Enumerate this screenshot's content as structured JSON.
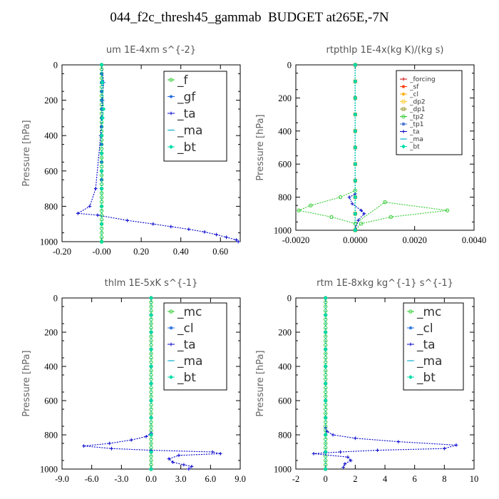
{
  "title": "044_f2c_thresh45_gammab  BUDGET at265E,-7N",
  "chart_data": [
    {
      "type": "line",
      "title": "um   1E-4xm s^{-2}",
      "ylabel": "Pressure [hPa]",
      "xlim": [
        -0.2,
        0.7
      ],
      "ylim": [
        1000,
        0
      ],
      "xticks": [
        "-0.20",
        "-0.00",
        "0.20",
        "0.40",
        "0.60"
      ],
      "xtick_values": [
        -0.2,
        0,
        0.2,
        0.4,
        0.6
      ],
      "yticks": [
        "0",
        "200",
        "400",
        "600",
        "800",
        "1000"
      ],
      "legend_position": "top-right",
      "series": [
        {
          "name": "_f",
          "color": "#33cc33",
          "marker": "circle",
          "x": [
            0,
            0,
            0,
            0,
            0,
            0,
            0,
            0,
            0,
            0,
            0,
            0,
            0,
            0,
            0,
            0,
            0,
            0,
            0,
            0,
            0,
            0,
            0,
            0,
            0,
            0,
            0,
            0,
            0,
            0,
            0,
            0,
            0,
            0,
            0,
            0,
            0,
            0,
            0,
            0,
            0,
            0,
            0
          ],
          "y": [
            0,
            25,
            50,
            75,
            100,
            125,
            150,
            175,
            200,
            225,
            250,
            275,
            300,
            325,
            350,
            375,
            400,
            425,
            450,
            475,
            500,
            525,
            550,
            575,
            600,
            625,
            650,
            675,
            700,
            725,
            750,
            775,
            800,
            825,
            850,
            875,
            900,
            925,
            950,
            975,
            1000,
            1000,
            1000
          ]
        },
        {
          "name": "_gf",
          "color": "#1a66dd",
          "marker": "asterisk",
          "x": [
            0,
            0,
            0,
            0,
            0,
            0,
            0,
            0,
            0,
            0,
            0,
            0,
            0,
            0,
            0
          ],
          "y": [
            0,
            50,
            100,
            150,
            200,
            250,
            300,
            350,
            400,
            450,
            500,
            550,
            600,
            650,
            700
          ]
        },
        {
          "name": "_ta",
          "color": "#0000cc",
          "marker": "plus",
          "x": [
            0,
            0.01,
            0.005,
            0,
            -0.005,
            -0.03,
            -0.06,
            -0.12,
            -0.02,
            0.13,
            0.26,
            0.35,
            0.44,
            0.52,
            0.58,
            0.63,
            0.68,
            0.69
          ],
          "y": [
            0,
            100,
            200,
            300,
            400,
            700,
            800,
            840,
            850,
            880,
            900,
            915,
            930,
            945,
            960,
            975,
            990,
            1000
          ]
        },
        {
          "name": "_ma",
          "color": "#00aacc",
          "marker": "dash",
          "x": [
            0,
            0,
            0,
            0,
            0,
            0,
            0,
            0,
            0,
            0,
            0
          ],
          "y": [
            0,
            100,
            200,
            300,
            400,
            500,
            600,
            700,
            800,
            900,
            1000
          ]
        },
        {
          "name": "_bt",
          "color": "#00ddaa",
          "marker": "diamond",
          "x": [
            0,
            0.005,
            0.01,
            0.005,
            0,
            0,
            0,
            0,
            0,
            0,
            0
          ],
          "y": [
            0,
            100,
            250,
            300,
            400,
            500,
            600,
            700,
            800,
            900,
            1000
          ]
        }
      ]
    },
    {
      "type": "line",
      "title": "rtpthlp   1E-4x(kg K)/(kg s)",
      "ylabel": "Pressure [hPa]",
      "xlim": [
        -0.002,
        0.004
      ],
      "ylim": [
        1000,
        0
      ],
      "xticks": [
        "-0.0020",
        "0.0000",
        "0.0020",
        "0.0040"
      ],
      "xtick_values": [
        -0.002,
        0,
        0.002,
        0.004
      ],
      "yticks": [
        "0",
        "200",
        "400",
        "600",
        "800",
        "1000"
      ],
      "legend_position": "top-right",
      "series": [
        {
          "name": "_forcing",
          "color": "#cc0000",
          "marker": "plus",
          "x": [
            0,
            0,
            0,
            0,
            0,
            0,
            0,
            0,
            0,
            0,
            0
          ],
          "y": [
            0,
            100,
            200,
            300,
            400,
            500,
            600,
            700,
            800,
            900,
            1000
          ]
        },
        {
          "name": "_sf",
          "color": "#ff3300",
          "marker": "asterisk",
          "x": [
            0,
            0,
            0,
            0,
            0,
            0,
            0,
            0,
            0,
            0,
            0
          ],
          "y": [
            0,
            100,
            200,
            300,
            400,
            500,
            600,
            700,
            800,
            900,
            1000
          ]
        },
        {
          "name": "_cl",
          "color": "#ffaa00",
          "marker": "asterisk",
          "x": [
            0,
            0,
            0,
            0,
            0,
            0,
            0,
            0,
            0,
            0,
            0
          ],
          "y": [
            0,
            100,
            200,
            300,
            400,
            500,
            600,
            700,
            800,
            900,
            1000
          ]
        },
        {
          "name": "_dp2",
          "color": "#ffcc33",
          "marker": "square",
          "x": [
            0,
            0,
            0,
            0,
            0,
            0,
            0,
            0,
            0,
            0,
            0
          ],
          "y": [
            0,
            100,
            200,
            300,
            400,
            500,
            600,
            700,
            800,
            900,
            1000
          ]
        },
        {
          "name": "_dp1",
          "color": "#999933",
          "marker": "square",
          "x": [
            0,
            0,
            0,
            0,
            0,
            0,
            0,
            0,
            0,
            0,
            0
          ],
          "y": [
            0,
            100,
            200,
            300,
            400,
            500,
            600,
            700,
            800,
            900,
            1000
          ]
        },
        {
          "name": "_tp2",
          "color": "#33cc33",
          "marker": "circle",
          "x": [
            0,
            0,
            -0.0005,
            -0.0015,
            -0.0019,
            -0.0008,
            0,
            0.001,
            0.0031,
            0.0012,
            0.0002,
            0
          ],
          "y": [
            0,
            760,
            800,
            850,
            880,
            920,
            960,
            830,
            880,
            920,
            960,
            1000
          ]
        },
        {
          "name": "_tp1",
          "color": "#3366cc",
          "marker": "asterisk",
          "x": [
            0,
            0,
            0,
            0,
            0,
            0,
            0,
            0,
            0,
            0,
            0
          ],
          "y": [
            0,
            100,
            200,
            300,
            400,
            500,
            600,
            700,
            800,
            900,
            1000
          ]
        },
        {
          "name": "_ta",
          "color": "#0000cc",
          "marker": "plus",
          "x": [
            0,
            0,
            -0.0002,
            -0.0001,
            0.0002,
            0.0003,
            0.0001,
            0
          ],
          "y": [
            0,
            780,
            800,
            840,
            880,
            900,
            940,
            1000
          ]
        },
        {
          "name": "_ma",
          "color": "#00aacc",
          "marker": "dash",
          "x": [
            0,
            0,
            0,
            0,
            0,
            0,
            0,
            0,
            0,
            0,
            0
          ],
          "y": [
            0,
            100,
            200,
            300,
            400,
            500,
            600,
            700,
            800,
            900,
            1000
          ]
        },
        {
          "name": "_bt",
          "color": "#00ddaa",
          "marker": "diamond",
          "x": [
            0,
            0,
            0,
            0,
            0,
            0,
            0,
            0,
            0,
            0,
            0
          ],
          "y": [
            0,
            100,
            200,
            300,
            400,
            500,
            600,
            700,
            800,
            900,
            1000
          ]
        }
      ]
    },
    {
      "type": "line",
      "title": "thlm   1E-5xK s^{-1}",
      "ylabel": "Pressure [hPa]",
      "xlim": [
        -9,
        9
      ],
      "ylim": [
        1000,
        0
      ],
      "xticks": [
        "-9.0",
        "-6.0",
        "-3.0",
        "0.0",
        "3.0",
        "6.0",
        "9.0"
      ],
      "xtick_values": [
        -9,
        -6,
        -3,
        0,
        3,
        6,
        9
      ],
      "yticks": [
        "0",
        "200",
        "400",
        "600",
        "800",
        "1000"
      ],
      "legend_position": "top-right",
      "series": [
        {
          "name": "_mc",
          "color": "#33cc33",
          "marker": "circle",
          "x": [
            0,
            0,
            0,
            0,
            0,
            0,
            0,
            0,
            0,
            0,
            0,
            0,
            0,
            0,
            0,
            0,
            0,
            0,
            0,
            0,
            0,
            0,
            0,
            0,
            0,
            0,
            0,
            0,
            0,
            0,
            0,
            0,
            0,
            0,
            0,
            0,
            0,
            0,
            0,
            0,
            0
          ],
          "y": [
            0,
            25,
            50,
            75,
            100,
            125,
            150,
            175,
            200,
            225,
            250,
            275,
            300,
            325,
            350,
            375,
            400,
            425,
            450,
            475,
            500,
            525,
            550,
            575,
            600,
            625,
            650,
            675,
            700,
            725,
            750,
            775,
            800,
            825,
            850,
            875,
            900,
            925,
            950,
            975,
            1000
          ]
        },
        {
          "name": "_cl",
          "color": "#1a66dd",
          "marker": "asterisk",
          "x": [
            0,
            0,
            0,
            0,
            0,
            0,
            0,
            0,
            0,
            0,
            0
          ],
          "y": [
            0,
            100,
            200,
            300,
            400,
            500,
            600,
            700,
            800,
            900,
            1000
          ]
        },
        {
          "name": "_ta",
          "color": "#0000cc",
          "marker": "plus",
          "x": [
            0,
            0,
            -0.5,
            -2.0,
            -4.2,
            -6.8,
            -4.0,
            0,
            6.2,
            7.0,
            2.8,
            1.8,
            2.2,
            3.3,
            4.1,
            3.8
          ],
          "y": [
            0,
            790,
            810,
            830,
            850,
            865,
            880,
            890,
            900,
            910,
            920,
            940,
            960,
            975,
            985,
            1000
          ]
        },
        {
          "name": "_ma",
          "color": "#00aacc",
          "marker": "dash",
          "x": [
            0,
            0,
            0,
            0,
            0,
            0,
            0,
            0,
            0,
            0,
            0
          ],
          "y": [
            0,
            100,
            200,
            300,
            400,
            500,
            600,
            700,
            800,
            900,
            1000
          ]
        },
        {
          "name": "_bt",
          "color": "#00ddaa",
          "marker": "diamond",
          "x": [
            0,
            0,
            0,
            0,
            0,
            0,
            0,
            0,
            0,
            0,
            0
          ],
          "y": [
            0,
            100,
            200,
            300,
            400,
            500,
            600,
            700,
            800,
            900,
            1000
          ]
        }
      ]
    },
    {
      "type": "line",
      "title": "rtm   1E-8xkg kg^{-1} s^{-1}",
      "ylabel": "Pressure [hPa]",
      "xlim": [
        -2,
        10
      ],
      "ylim": [
        1000,
        0
      ],
      "xticks": [
        "-2",
        "0",
        "2",
        "4",
        "6",
        "8",
        "10"
      ],
      "xtick_values": [
        -2,
        0,
        2,
        4,
        6,
        8,
        10
      ],
      "yticks": [
        "0",
        "200",
        "400",
        "600",
        "800",
        "1000"
      ],
      "legend_position": "top-right",
      "series": [
        {
          "name": "_mc",
          "color": "#33cc33",
          "marker": "circle",
          "x": [
            0,
            0,
            0,
            0,
            0,
            0,
            0,
            0,
            0,
            0,
            0,
            0,
            0,
            0,
            0,
            0,
            0,
            0,
            0,
            0,
            0,
            0,
            0,
            0,
            0,
            0,
            0,
            0,
            0,
            0,
            0,
            0,
            0,
            0,
            0,
            0,
            0,
            0,
            0,
            0,
            0
          ],
          "y": [
            0,
            25,
            50,
            75,
            100,
            125,
            150,
            175,
            200,
            225,
            250,
            275,
            300,
            325,
            350,
            375,
            400,
            425,
            450,
            475,
            500,
            525,
            550,
            575,
            600,
            625,
            650,
            675,
            700,
            725,
            750,
            775,
            800,
            825,
            850,
            875,
            900,
            925,
            950,
            975,
            1000
          ]
        },
        {
          "name": "_cl",
          "color": "#1a66dd",
          "marker": "asterisk",
          "x": [
            0,
            0,
            0,
            0,
            0,
            0,
            0,
            0,
            0,
            0,
            0
          ],
          "y": [
            0,
            100,
            200,
            300,
            400,
            500,
            600,
            700,
            800,
            900,
            1000
          ]
        },
        {
          "name": "_ta",
          "color": "#0000cc",
          "marker": "plus",
          "x": [
            0,
            0,
            0.1,
            0.5,
            2.0,
            4.9,
            8.8,
            8.0,
            3.5,
            1.0,
            0,
            -0.8,
            1.5,
            1.7,
            1.3,
            1.2
          ],
          "y": [
            0,
            760,
            780,
            800,
            820,
            840,
            860,
            880,
            890,
            900,
            905,
            910,
            930,
            950,
            970,
            990
          ]
        },
        {
          "name": "_ma",
          "color": "#00aacc",
          "marker": "dash",
          "x": [
            0,
            0,
            0,
            0,
            0,
            0,
            0,
            0,
            0,
            0,
            0
          ],
          "y": [
            0,
            100,
            200,
            300,
            400,
            500,
            600,
            700,
            800,
            900,
            1000
          ]
        },
        {
          "name": "_bt",
          "color": "#00ddaa",
          "marker": "diamond",
          "x": [
            0,
            0,
            0,
            0,
            0,
            0,
            0,
            0,
            0,
            0,
            0
          ],
          "y": [
            0,
            100,
            200,
            300,
            400,
            500,
            600,
            700,
            800,
            900,
            1000
          ]
        }
      ]
    }
  ]
}
